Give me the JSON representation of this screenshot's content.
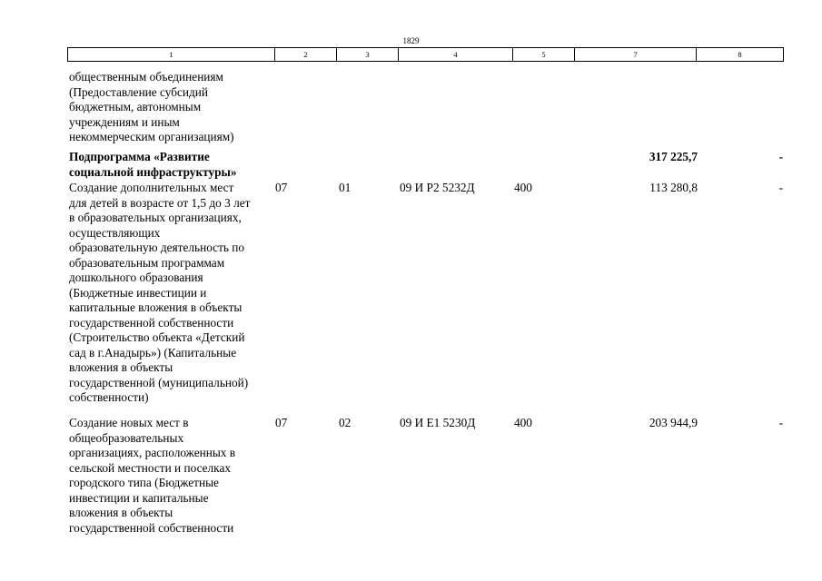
{
  "page_number": "1829",
  "header_columns": [
    "1",
    "2",
    "3",
    "4",
    "5",
    "7",
    "8"
  ],
  "rows": [
    {
      "name_lines": [
        "общественным объединениям",
        "(Предоставление субсидий",
        "бюджетным, автономным",
        "учреждениям и иным",
        "некоммерческим организациям)"
      ],
      "c2": "",
      "c3": "",
      "c4": "",
      "c5": "",
      "c7": "",
      "c8": ""
    },
    {
      "bold": true,
      "name_lines": [
        "Подпрограмма «Развитие",
        "социальной инфраструктуры»"
      ],
      "c2": "",
      "c3": "",
      "c4": "",
      "c5": "",
      "c7": "317 225,7",
      "c8": "-"
    },
    {
      "name_lines": [
        "Создание дополнительных мест",
        "для детей в возрасте от 1,5 до 3 лет",
        "в образовательных организациях,",
        "осуществляющих",
        "образовательную деятельность по",
        "образовательным программам",
        "дошкольного образования",
        "(Бюджетные инвестиции и",
        "капитальные вложения в объекты",
        "государственной собственности",
        "(Строительство объекта «Детский",
        "сад в г.Анадырь») (Капитальные",
        "вложения в объекты",
        "государственной (муниципальной)",
        "собственности)"
      ],
      "c2": "07",
      "c3": "01",
      "c4": "09 И Р2 5232Д",
      "c5": "400",
      "c7": "113 280,8",
      "c8": "-"
    },
    {
      "name_lines": [
        "Создание новых мест в",
        "общеобразовательных",
        "организациях, расположенных в",
        "сельской местности и поселках",
        "городского типа (Бюджетные",
        "инвестиции и капитальные",
        "вложения в объекты",
        "государственной собственности"
      ],
      "c2": "07",
      "c3": "02",
      "c4": "09 И Е1 5230Д",
      "c5": "400",
      "c7": "203 944,9",
      "c8": "-"
    }
  ]
}
